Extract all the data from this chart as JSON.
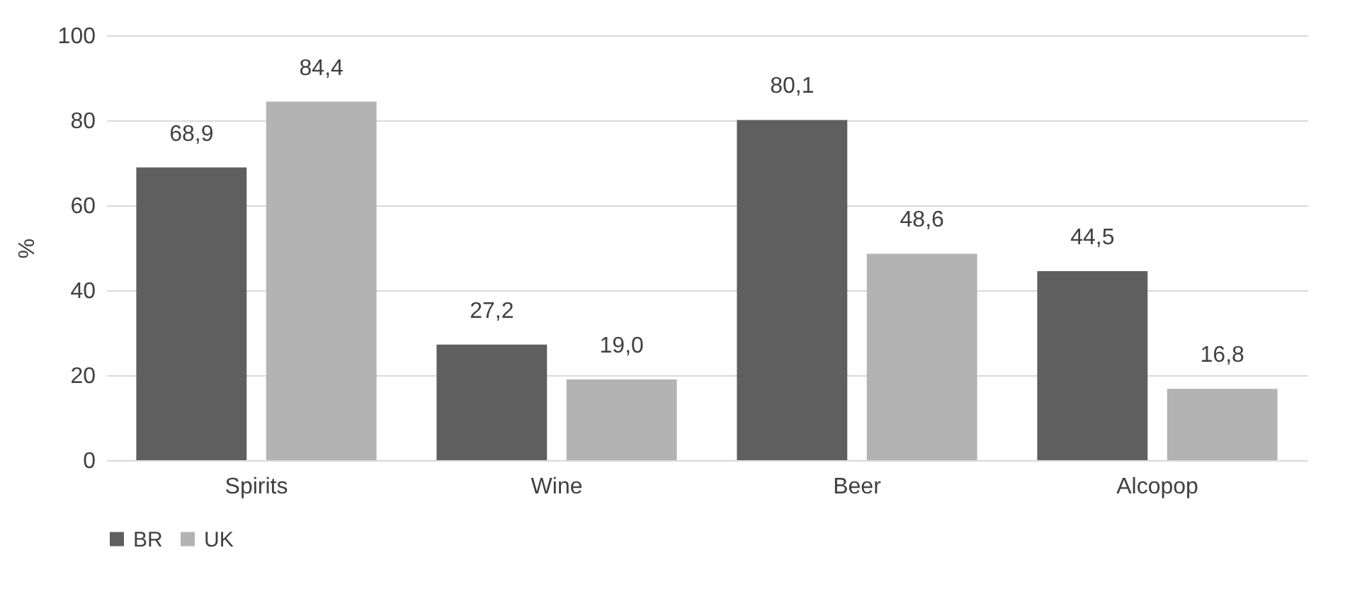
{
  "chart_data": {
    "type": "bar",
    "ylabel": "%",
    "categories": [
      "Spirits",
      "Wine",
      "Beer",
      "Alcopop"
    ],
    "series": [
      {
        "name": "BR",
        "color": "#5f5f5f",
        "values": [
          68.9,
          27.2,
          80.1,
          44.5
        ],
        "value_labels": [
          "68,9",
          "27,2",
          "80,1",
          "44,5"
        ]
      },
      {
        "name": "UK",
        "color": "#b3b3b3",
        "values": [
          84.4,
          19.0,
          48.6,
          16.8
        ],
        "value_labels": [
          "84,4",
          "19,0",
          "48,6",
          "16,8"
        ]
      }
    ],
    "ylim": [
      0,
      100
    ],
    "yticks": [
      0,
      20,
      40,
      60,
      80,
      100
    ],
    "grid": "y",
    "legend": "bottom"
  }
}
